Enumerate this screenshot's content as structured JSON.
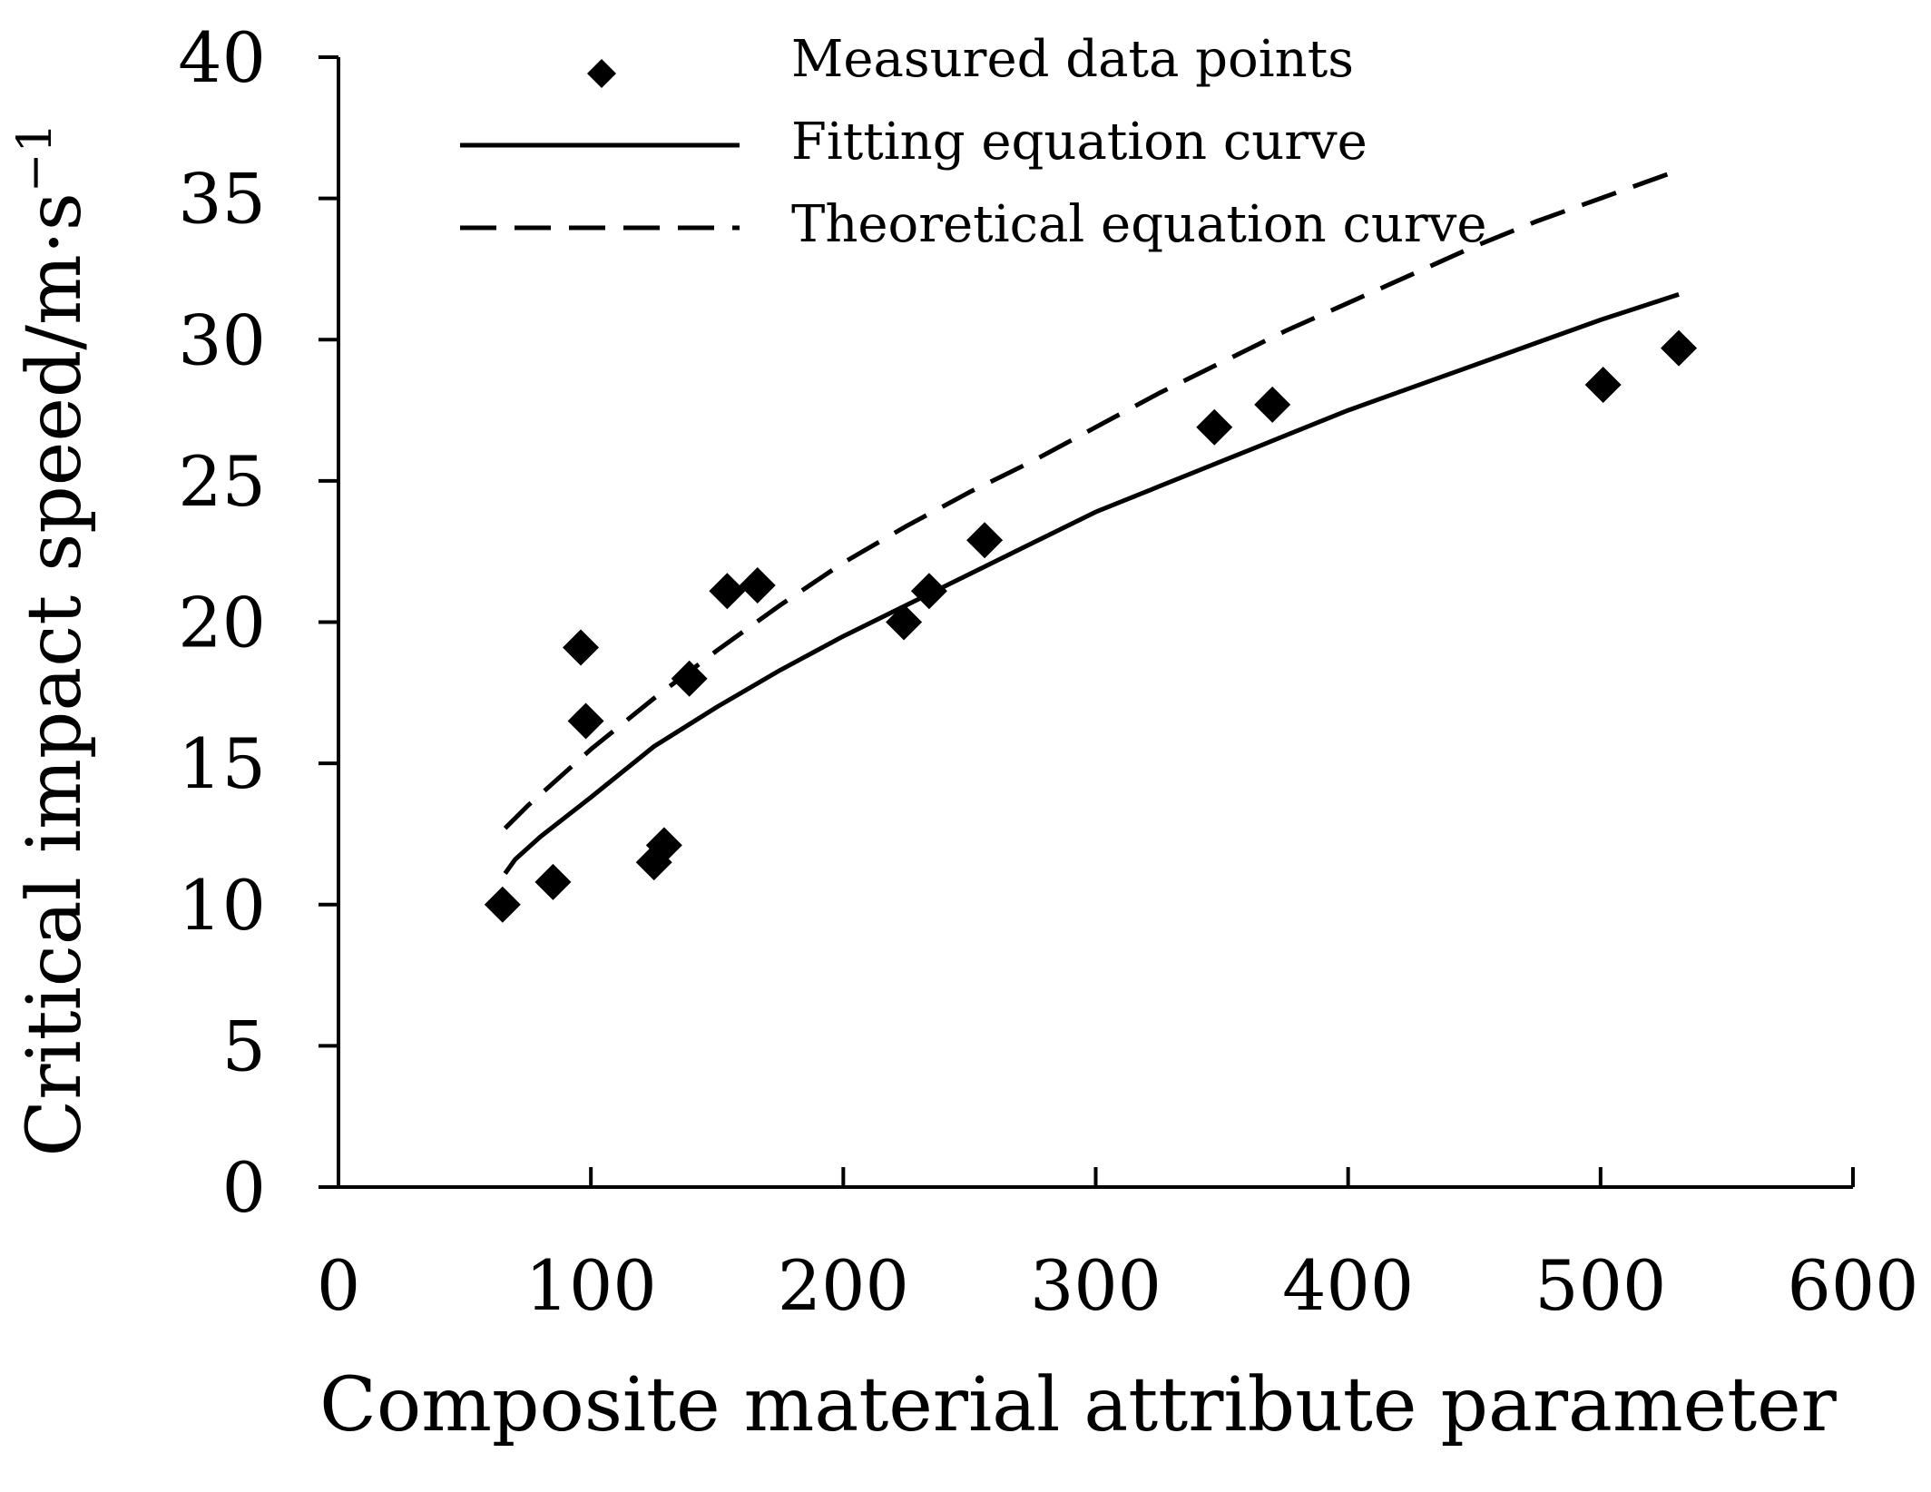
{
  "chart_data": {
    "type": "scatter",
    "title": "",
    "xlabel": "Composite material attribute parameter",
    "ylabel": "Critical impact speed/m·s",
    "ylabel_superscript": "−1",
    "xlim": [
      0,
      600
    ],
    "ylim": [
      0,
      40
    ],
    "xticks": [
      0,
      100,
      200,
      300,
      400,
      500,
      600
    ],
    "yticks": [
      0,
      5,
      10,
      15,
      20,
      25,
      30,
      35,
      40
    ],
    "grid": false,
    "legend_position": "top",
    "colors": {
      "ink": "#000000",
      "background": "#ffffff"
    },
    "series": [
      {
        "name": "Measured data points",
        "kind": "scatter",
        "marker": "diamond",
        "points": [
          [
            65,
            10.0
          ],
          [
            85,
            10.8
          ],
          [
            96,
            19.1
          ],
          [
            98,
            16.5
          ],
          [
            125,
            11.5
          ],
          [
            129,
            12.1
          ],
          [
            139,
            18.0
          ],
          [
            154,
            21.1
          ],
          [
            166,
            21.3
          ],
          [
            224,
            20.0
          ],
          [
            234,
            21.1
          ],
          [
            256,
            22.9
          ],
          [
            347,
            26.9
          ],
          [
            370,
            27.7
          ],
          [
            501,
            28.4
          ],
          [
            531,
            29.7
          ]
        ]
      },
      {
        "name": "Fitting equation curve",
        "kind": "line",
        "style": "solid",
        "points": [
          [
            66,
            11.1
          ],
          [
            70,
            11.6
          ],
          [
            80,
            12.4
          ],
          [
            100,
            13.8
          ],
          [
            125,
            15.6
          ],
          [
            150,
            17.0
          ],
          [
            175,
            18.3
          ],
          [
            200,
            19.5
          ],
          [
            225,
            20.6
          ],
          [
            250,
            21.7
          ],
          [
            275,
            22.8
          ],
          [
            300,
            23.9
          ],
          [
            325,
            24.8
          ],
          [
            350,
            25.7
          ],
          [
            375,
            26.6
          ],
          [
            400,
            27.5
          ],
          [
            425,
            28.3
          ],
          [
            450,
            29.1
          ],
          [
            475,
            29.9
          ],
          [
            500,
            30.7
          ],
          [
            531,
            31.6
          ]
        ]
      },
      {
        "name": "Theoretical equation curve",
        "kind": "line",
        "style": "dashed",
        "points": [
          [
            66,
            12.7
          ],
          [
            75,
            13.5
          ],
          [
            100,
            15.5
          ],
          [
            125,
            17.3
          ],
          [
            150,
            19.0
          ],
          [
            175,
            20.6
          ],
          [
            200,
            22.1
          ],
          [
            225,
            23.4
          ],
          [
            250,
            24.6
          ],
          [
            275,
            25.7
          ],
          [
            300,
            26.9
          ],
          [
            325,
            28.1
          ],
          [
            350,
            29.2
          ],
          [
            375,
            30.3
          ],
          [
            400,
            31.3
          ],
          [
            425,
            32.3
          ],
          [
            450,
            33.3
          ],
          [
            475,
            34.2
          ],
          [
            500,
            35.0
          ],
          [
            531,
            36.0
          ]
        ]
      }
    ]
  }
}
